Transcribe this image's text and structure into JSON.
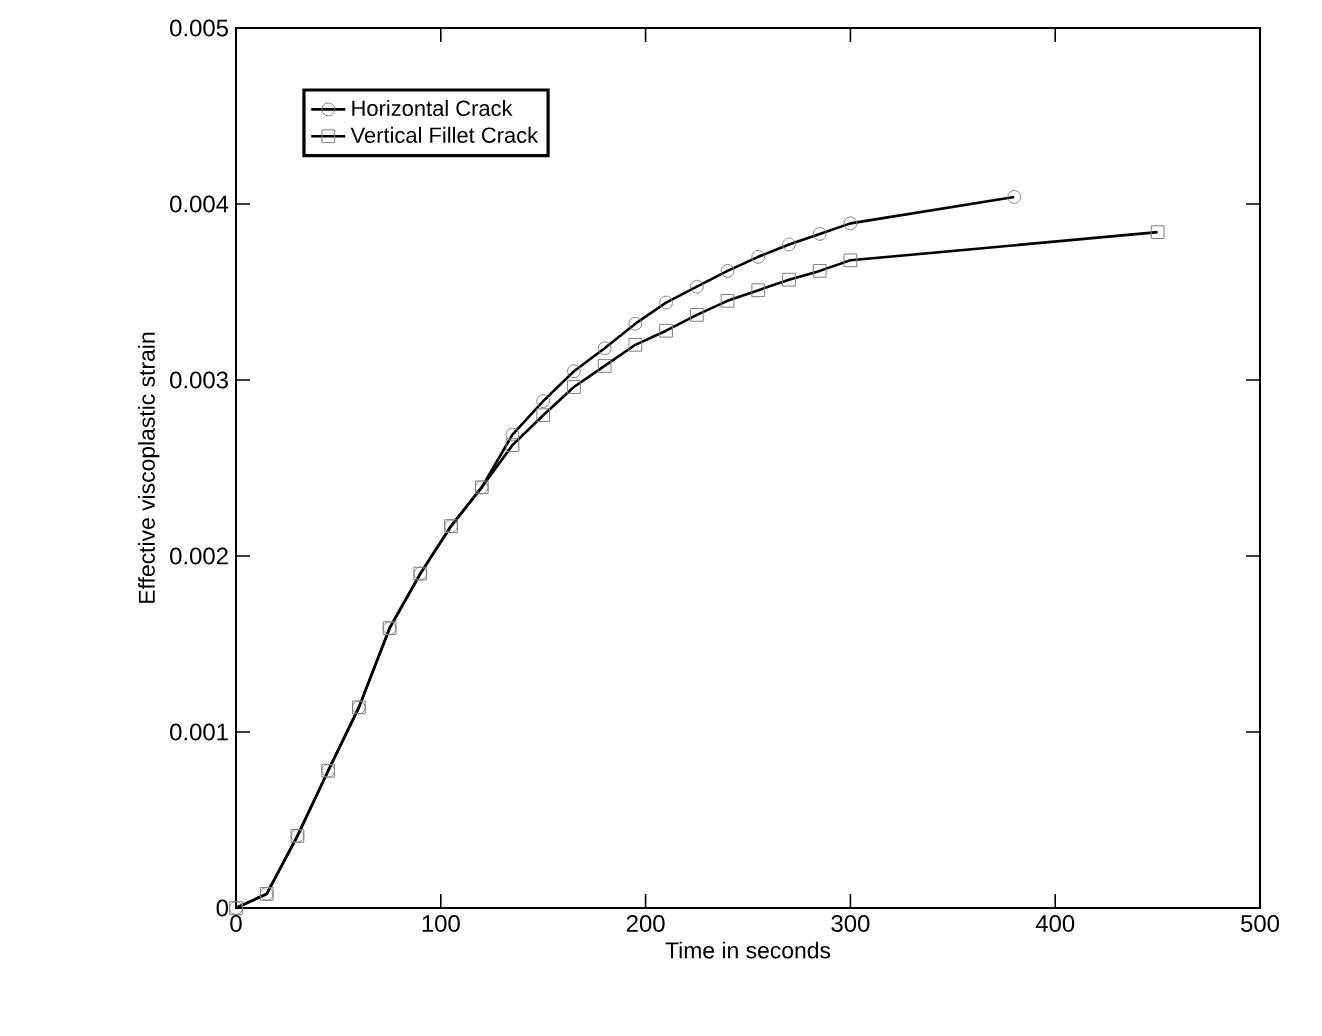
{
  "chart_data": {
    "type": "line",
    "xlabel": "Time in seconds",
    "ylabel": "Effective viscoplastic strain",
    "xlim": [
      0,
      500
    ],
    "xticks": [
      0,
      100,
      200,
      300,
      400,
      500
    ],
    "ylim": [
      0,
      0.005
    ],
    "yticks": [
      0,
      0.001,
      0.002,
      0.003,
      0.004,
      0.005
    ],
    "legend": "top left",
    "grid": false,
    "line_style": "solid",
    "series": [
      {
        "name": "Horizontal Crack",
        "color": "#000000",
        "marker": "circle",
        "x": [
          0,
          15,
          30,
          45,
          60,
          75,
          90,
          105,
          120,
          135,
          150,
          165,
          180,
          195,
          210,
          225,
          240,
          255,
          270,
          285,
          300,
          380
        ],
        "values": [
          0,
          8e-05,
          0.00041,
          0.00078,
          0.00114,
          0.00159,
          0.0019,
          0.00217,
          0.00239,
          0.00269,
          0.00288,
          0.00305,
          0.00318,
          0.00332,
          0.00344,
          0.00353,
          0.00362,
          0.0037,
          0.00377,
          0.00383,
          0.00389,
          0.00404
        ]
      },
      {
        "name": "Vertical Fillet Crack",
        "color": "#000000",
        "marker": "square",
        "x": [
          0,
          15,
          30,
          45,
          60,
          75,
          90,
          105,
          120,
          135,
          150,
          165,
          180,
          195,
          210,
          225,
          240,
          255,
          270,
          285,
          300,
          450
        ],
        "values": [
          0,
          8e-05,
          0.00041,
          0.00078,
          0.00114,
          0.00159,
          0.0019,
          0.00217,
          0.00239,
          0.00263,
          0.0028,
          0.00296,
          0.00308,
          0.0032,
          0.00328,
          0.00337,
          0.00345,
          0.00351,
          0.00357,
          0.00362,
          0.00368,
          0.00384
        ]
      }
    ]
  }
}
